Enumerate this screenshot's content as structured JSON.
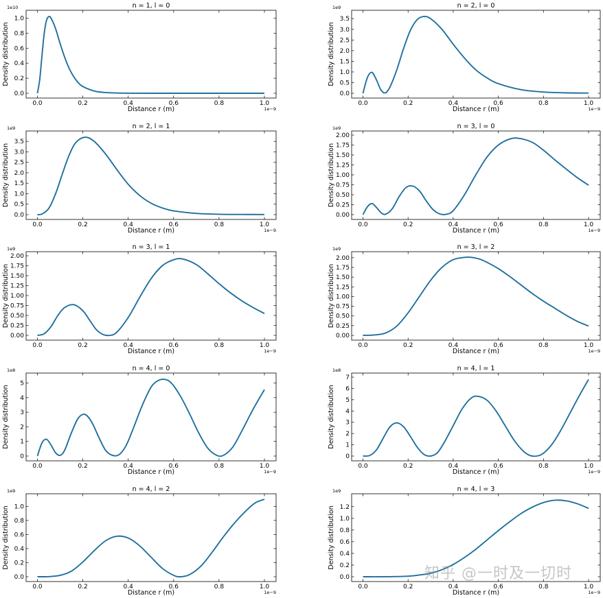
{
  "watermark": "知乎 @一时及一切时",
  "colors": {
    "line": "#1f6f9e"
  },
  "chart_data": [
    {
      "type": "line",
      "title": "n = 1, l = 0",
      "xlabel": "Distance r (m)",
      "ylabel": "Density distribution",
      "x_offset": "1e−9",
      "y_offset": "1e10",
      "xlim": [
        0,
        1
      ],
      "ylim": [
        0,
        1.05
      ],
      "xticks": [
        0,
        0.2,
        0.4,
        0.6,
        0.8,
        1.0
      ],
      "xtick_labels": [
        "0.0",
        "0.2",
        "0.4",
        "0.6",
        "0.8",
        "1.0"
      ],
      "yticks": [
        0,
        0.2,
        0.4,
        0.6,
        0.8,
        1.0
      ],
      "ytick_labels": [
        "0.0",
        "0.2",
        "0.4",
        "0.6",
        "0.8",
        "1.0"
      ],
      "series": [
        {
          "x": [
            0,
            0.01,
            0.02,
            0.03,
            0.04,
            0.05,
            0.06,
            0.08,
            0.1,
            0.12,
            0.14,
            0.16,
            0.18,
            0.2,
            0.25,
            0.3,
            0.4,
            0.6,
            0.8,
            1.0
          ],
          "y": [
            0,
            0.18,
            0.5,
            0.8,
            0.97,
            1.02,
            1.0,
            0.86,
            0.66,
            0.48,
            0.33,
            0.22,
            0.14,
            0.09,
            0.03,
            0.01,
            0.001,
            0,
            0,
            0
          ]
        }
      ]
    },
    {
      "type": "line",
      "title": "n = 2, l = 0",
      "xlabel": "Distance r (m)",
      "ylabel": "Density distribution",
      "x_offset": "1e−9",
      "y_offset": "1e9",
      "xlim": [
        0,
        1
      ],
      "ylim": [
        0,
        3.7
      ],
      "xticks": [
        0,
        0.2,
        0.4,
        0.6,
        0.8,
        1.0
      ],
      "xtick_labels": [
        "0.0",
        "0.2",
        "0.4",
        "0.6",
        "0.8",
        "1.0"
      ],
      "yticks": [
        0,
        0.5,
        1.0,
        1.5,
        2.0,
        2.5,
        3.0,
        3.5
      ],
      "ytick_labels": [
        "0.0",
        "0.5",
        "1.0",
        "1.5",
        "2.0",
        "2.5",
        "3.0",
        "3.5"
      ],
      "series": [
        {
          "x": [
            0,
            0.02,
            0.04,
            0.06,
            0.08,
            0.1,
            0.12,
            0.15,
            0.18,
            0.21,
            0.24,
            0.27,
            0.3,
            0.35,
            0.4,
            0.45,
            0.5,
            0.55,
            0.6,
            0.7,
            0.8,
            0.9,
            1.0
          ],
          "y": [
            0,
            0.75,
            0.98,
            0.62,
            0.15,
            0.02,
            0.3,
            1.1,
            2.1,
            2.95,
            3.45,
            3.6,
            3.5,
            3.0,
            2.3,
            1.65,
            1.1,
            0.72,
            0.45,
            0.17,
            0.06,
            0.02,
            0.01
          ]
        }
      ]
    },
    {
      "type": "line",
      "title": "n = 2, l = 1",
      "xlabel": "Distance r (m)",
      "ylabel": "Density distribution",
      "x_offset": "1e−9",
      "y_offset": "1e9",
      "xlim": [
        0,
        1
      ],
      "ylim": [
        0,
        3.8
      ],
      "xticks": [
        0,
        0.2,
        0.4,
        0.6,
        0.8,
        1.0
      ],
      "xtick_labels": [
        "0.0",
        "0.2",
        "0.4",
        "0.6",
        "0.8",
        "1.0"
      ],
      "yticks": [
        0,
        0.5,
        1.0,
        1.5,
        2.0,
        2.5,
        3.0,
        3.5
      ],
      "ytick_labels": [
        "0.0",
        "0.5",
        "1.0",
        "1.5",
        "2.0",
        "2.5",
        "3.0",
        "3.5"
      ],
      "series": [
        {
          "x": [
            0,
            0.02,
            0.05,
            0.08,
            0.11,
            0.14,
            0.17,
            0.21,
            0.25,
            0.3,
            0.35,
            0.4,
            0.45,
            0.5,
            0.55,
            0.6,
            0.7,
            0.8,
            0.9,
            1.0
          ],
          "y": [
            0,
            0.03,
            0.3,
            1.0,
            1.95,
            2.85,
            3.45,
            3.7,
            3.5,
            2.9,
            2.15,
            1.45,
            0.92,
            0.55,
            0.32,
            0.18,
            0.06,
            0.02,
            0.01,
            0.005
          ]
        }
      ]
    },
    {
      "type": "line",
      "title": "n = 3, l = 0",
      "xlabel": "Distance r (m)",
      "ylabel": "Density distribution",
      "x_offset": "1e−9",
      "y_offset": "1e9",
      "xlim": [
        0,
        1
      ],
      "ylim": [
        0,
        2.0
      ],
      "xticks": [
        0,
        0.2,
        0.4,
        0.6,
        0.8,
        1.0
      ],
      "xtick_labels": [
        "0.0",
        "0.2",
        "0.4",
        "0.6",
        "0.8",
        "1.0"
      ],
      "yticks": [
        0,
        0.25,
        0.5,
        0.75,
        1.0,
        1.25,
        1.5,
        1.75,
        2.0
      ],
      "ytick_labels": [
        "0.00",
        "0.25",
        "0.50",
        "0.75",
        "1.00",
        "1.25",
        "1.50",
        "1.75",
        "2.00"
      ],
      "series": [
        {
          "x": [
            0,
            0.02,
            0.04,
            0.06,
            0.08,
            0.1,
            0.13,
            0.16,
            0.19,
            0.22,
            0.25,
            0.28,
            0.31,
            0.34,
            0.37,
            0.4,
            0.45,
            0.5,
            0.55,
            0.6,
            0.65,
            0.69,
            0.75,
            0.8,
            0.85,
            0.9,
            0.95,
            1.0
          ],
          "y": [
            0,
            0.2,
            0.28,
            0.18,
            0.05,
            0.01,
            0.15,
            0.45,
            0.68,
            0.72,
            0.6,
            0.35,
            0.13,
            0.02,
            0.01,
            0.1,
            0.5,
            1.0,
            1.45,
            1.75,
            1.9,
            1.92,
            1.82,
            1.62,
            1.38,
            1.15,
            0.93,
            0.74
          ]
        }
      ]
    },
    {
      "type": "line",
      "title": "n = 3, l = 1",
      "xlabel": "Distance r (m)",
      "ylabel": "Density distribution",
      "x_offset": "1e−9",
      "y_offset": "1e9",
      "xlim": [
        0,
        1
      ],
      "ylim": [
        0,
        2.0
      ],
      "xticks": [
        0,
        0.2,
        0.4,
        0.6,
        0.8,
        1.0
      ],
      "xtick_labels": [
        "0.0",
        "0.2",
        "0.4",
        "0.6",
        "0.8",
        "1.0"
      ],
      "yticks": [
        0,
        0.25,
        0.5,
        0.75,
        1.0,
        1.25,
        1.5,
        1.75,
        2.0
      ],
      "ytick_labels": [
        "0.00",
        "0.25",
        "0.50",
        "0.75",
        "1.00",
        "1.25",
        "1.50",
        "1.75",
        "2.00"
      ],
      "series": [
        {
          "x": [
            0,
            0.03,
            0.06,
            0.09,
            0.12,
            0.16,
            0.2,
            0.23,
            0.26,
            0.29,
            0.32,
            0.35,
            0.4,
            0.45,
            0.5,
            0.55,
            0.6,
            0.64,
            0.7,
            0.75,
            0.8,
            0.85,
            0.9,
            0.95,
            1.0
          ],
          "y": [
            0,
            0.04,
            0.22,
            0.5,
            0.7,
            0.77,
            0.62,
            0.38,
            0.14,
            0.02,
            0.0,
            0.08,
            0.45,
            0.95,
            1.42,
            1.75,
            1.9,
            1.92,
            1.78,
            1.55,
            1.3,
            1.07,
            0.87,
            0.7,
            0.55
          ]
        }
      ]
    },
    {
      "type": "line",
      "title": "n = 3, l = 2",
      "xlabel": "Distance r (m)",
      "ylabel": "Density distribution",
      "x_offset": "1e−9",
      "y_offset": "1e9",
      "xlim": [
        0,
        1
      ],
      "ylim": [
        0,
        2.05
      ],
      "xticks": [
        0,
        0.2,
        0.4,
        0.6,
        0.8,
        1.0
      ],
      "xtick_labels": [
        "0.0",
        "0.2",
        "0.4",
        "0.6",
        "0.8",
        "1.0"
      ],
      "yticks": [
        0,
        0.25,
        0.5,
        0.75,
        1.0,
        1.25,
        1.5,
        1.75,
        2.0
      ],
      "ytick_labels": [
        "0.00",
        "0.25",
        "0.50",
        "0.75",
        "1.00",
        "1.25",
        "1.50",
        "1.75",
        "2.00"
      ],
      "series": [
        {
          "x": [
            0,
            0.05,
            0.1,
            0.15,
            0.2,
            0.25,
            0.3,
            0.35,
            0.4,
            0.45,
            0.48,
            0.52,
            0.56,
            0.6,
            0.65,
            0.7,
            0.75,
            0.8,
            0.85,
            0.9,
            0.95,
            1.0
          ],
          "y": [
            0,
            0.01,
            0.06,
            0.24,
            0.58,
            1.0,
            1.42,
            1.75,
            1.95,
            2.01,
            2.01,
            1.96,
            1.85,
            1.72,
            1.52,
            1.3,
            1.08,
            0.88,
            0.7,
            0.52,
            0.36,
            0.24
          ]
        }
      ]
    },
    {
      "type": "line",
      "title": "n = 4, l = 0",
      "xlabel": "Distance r (m)",
      "ylabel": "Density distribution",
      "x_offset": "1e−9",
      "y_offset": "1e8",
      "xlim": [
        0,
        1
      ],
      "ylim": [
        0,
        5.4
      ],
      "xticks": [
        0,
        0.2,
        0.4,
        0.6,
        0.8,
        1.0
      ],
      "xtick_labels": [
        "0.0",
        "0.2",
        "0.4",
        "0.6",
        "0.8",
        "1.0"
      ],
      "yticks": [
        0,
        1,
        2,
        3,
        4,
        5
      ],
      "ytick_labels": [
        "0",
        "1",
        "2",
        "3",
        "4",
        "5"
      ],
      "series": [
        {
          "x": [
            0,
            0.02,
            0.04,
            0.06,
            0.08,
            0.1,
            0.12,
            0.15,
            0.18,
            0.21,
            0.24,
            0.27,
            0.3,
            0.33,
            0.36,
            0.39,
            0.42,
            0.46,
            0.5,
            0.53,
            0.56,
            0.59,
            0.63,
            0.67,
            0.71,
            0.75,
            0.79,
            0.82,
            0.86,
            0.9,
            0.95,
            1.0
          ],
          "y": [
            0,
            0.9,
            1.15,
            0.75,
            0.22,
            0.05,
            0.4,
            1.6,
            2.6,
            2.85,
            2.3,
            1.3,
            0.4,
            0.05,
            0.1,
            0.7,
            1.8,
            3.4,
            4.7,
            5.15,
            5.25,
            5.0,
            4.1,
            2.9,
            1.6,
            0.55,
            0.05,
            0.05,
            0.6,
            1.7,
            3.2,
            4.55
          ]
        }
      ]
    },
    {
      "type": "line",
      "title": "n = 4, l = 1",
      "xlabel": "Distance r (m)",
      "ylabel": "Density distribution",
      "x_offset": "1e−9",
      "y_offset": "1e8",
      "xlim": [
        0,
        1
      ],
      "ylim": [
        0,
        7
      ],
      "xticks": [
        0,
        0.2,
        0.4,
        0.6,
        0.8,
        1.0
      ],
      "xtick_labels": [
        "0.0",
        "0.2",
        "0.4",
        "0.6",
        "0.8",
        "1.0"
      ],
      "yticks": [
        0,
        1,
        2,
        3,
        4,
        5,
        6,
        7
      ],
      "ytick_labels": [
        "0",
        "1",
        "2",
        "3",
        "4",
        "5",
        "6",
        "7"
      ],
      "series": [
        {
          "x": [
            0,
            0.03,
            0.06,
            0.09,
            0.12,
            0.15,
            0.18,
            0.21,
            0.24,
            0.27,
            0.3,
            0.33,
            0.36,
            0.4,
            0.44,
            0.48,
            0.51,
            0.55,
            0.59,
            0.63,
            0.67,
            0.71,
            0.74,
            0.77,
            0.8,
            0.84,
            0.88,
            0.92,
            0.96,
            1.0
          ],
          "y": [
            0,
            0.05,
            0.55,
            1.6,
            2.6,
            2.95,
            2.6,
            1.75,
            0.8,
            0.15,
            0.0,
            0.3,
            1.2,
            2.7,
            4.2,
            5.15,
            5.3,
            4.95,
            4.0,
            2.7,
            1.4,
            0.45,
            0.05,
            0.0,
            0.25,
            1.1,
            2.4,
            3.9,
            5.4,
            6.8
          ]
        }
      ]
    },
    {
      "type": "line",
      "title": "n = 4, l = 2",
      "xlabel": "Distance r (m)",
      "ylabel": "Density distribution",
      "x_offset": "1e−9",
      "y_offset": "1e9",
      "xlim": [
        0,
        1
      ],
      "ylim": [
        0,
        1.12
      ],
      "xticks": [
        0,
        0.2,
        0.4,
        0.6,
        0.8,
        1.0
      ],
      "xtick_labels": [
        "0.0",
        "0.2",
        "0.4",
        "0.6",
        "0.8",
        "1.0"
      ],
      "yticks": [
        0,
        0.2,
        0.4,
        0.6,
        0.8,
        1.0
      ],
      "ytick_labels": [
        "0.0",
        "0.2",
        "0.4",
        "0.6",
        "0.8",
        "1.0"
      ],
      "series": [
        {
          "x": [
            0,
            0.05,
            0.1,
            0.15,
            0.2,
            0.25,
            0.3,
            0.35,
            0.4,
            0.45,
            0.5,
            0.55,
            0.6,
            0.63,
            0.67,
            0.72,
            0.77,
            0.82,
            0.87,
            0.92,
            0.96,
            1.0
          ],
          "y": [
            0,
            0.002,
            0.02,
            0.08,
            0.21,
            0.37,
            0.51,
            0.575,
            0.55,
            0.44,
            0.28,
            0.12,
            0.02,
            0.0,
            0.03,
            0.15,
            0.35,
            0.57,
            0.77,
            0.94,
            1.05,
            1.1
          ]
        }
      ]
    },
    {
      "type": "line",
      "title": "n = 4, l = 3",
      "xlabel": "Distance r (m)",
      "ylabel": "Density distribution",
      "x_offset": "1e−9",
      "y_offset": "1e9",
      "xlim": [
        0,
        1
      ],
      "ylim": [
        0,
        1.35
      ],
      "xticks": [
        0,
        0.2,
        0.4,
        0.6,
        0.8,
        1.0
      ],
      "xtick_labels": [
        "0.0",
        "0.2",
        "0.4",
        "0.6",
        "0.8",
        "1.0"
      ],
      "yticks": [
        0,
        0.2,
        0.4,
        0.6,
        0.8,
        1.0,
        1.2
      ],
      "ytick_labels": [
        "0.0",
        "0.2",
        "0.4",
        "0.6",
        "0.8",
        "1.0",
        "1.2"
      ],
      "series": [
        {
          "x": [
            0,
            0.1,
            0.2,
            0.25,
            0.3,
            0.35,
            0.4,
            0.45,
            0.5,
            0.55,
            0.6,
            0.65,
            0.7,
            0.75,
            0.8,
            0.85,
            0.9,
            0.95,
            1.0
          ],
          "y": [
            0,
            0.0005,
            0.01,
            0.03,
            0.06,
            0.12,
            0.21,
            0.33,
            0.47,
            0.63,
            0.79,
            0.94,
            1.08,
            1.19,
            1.27,
            1.31,
            1.3,
            1.25,
            1.17
          ]
        }
      ]
    }
  ]
}
